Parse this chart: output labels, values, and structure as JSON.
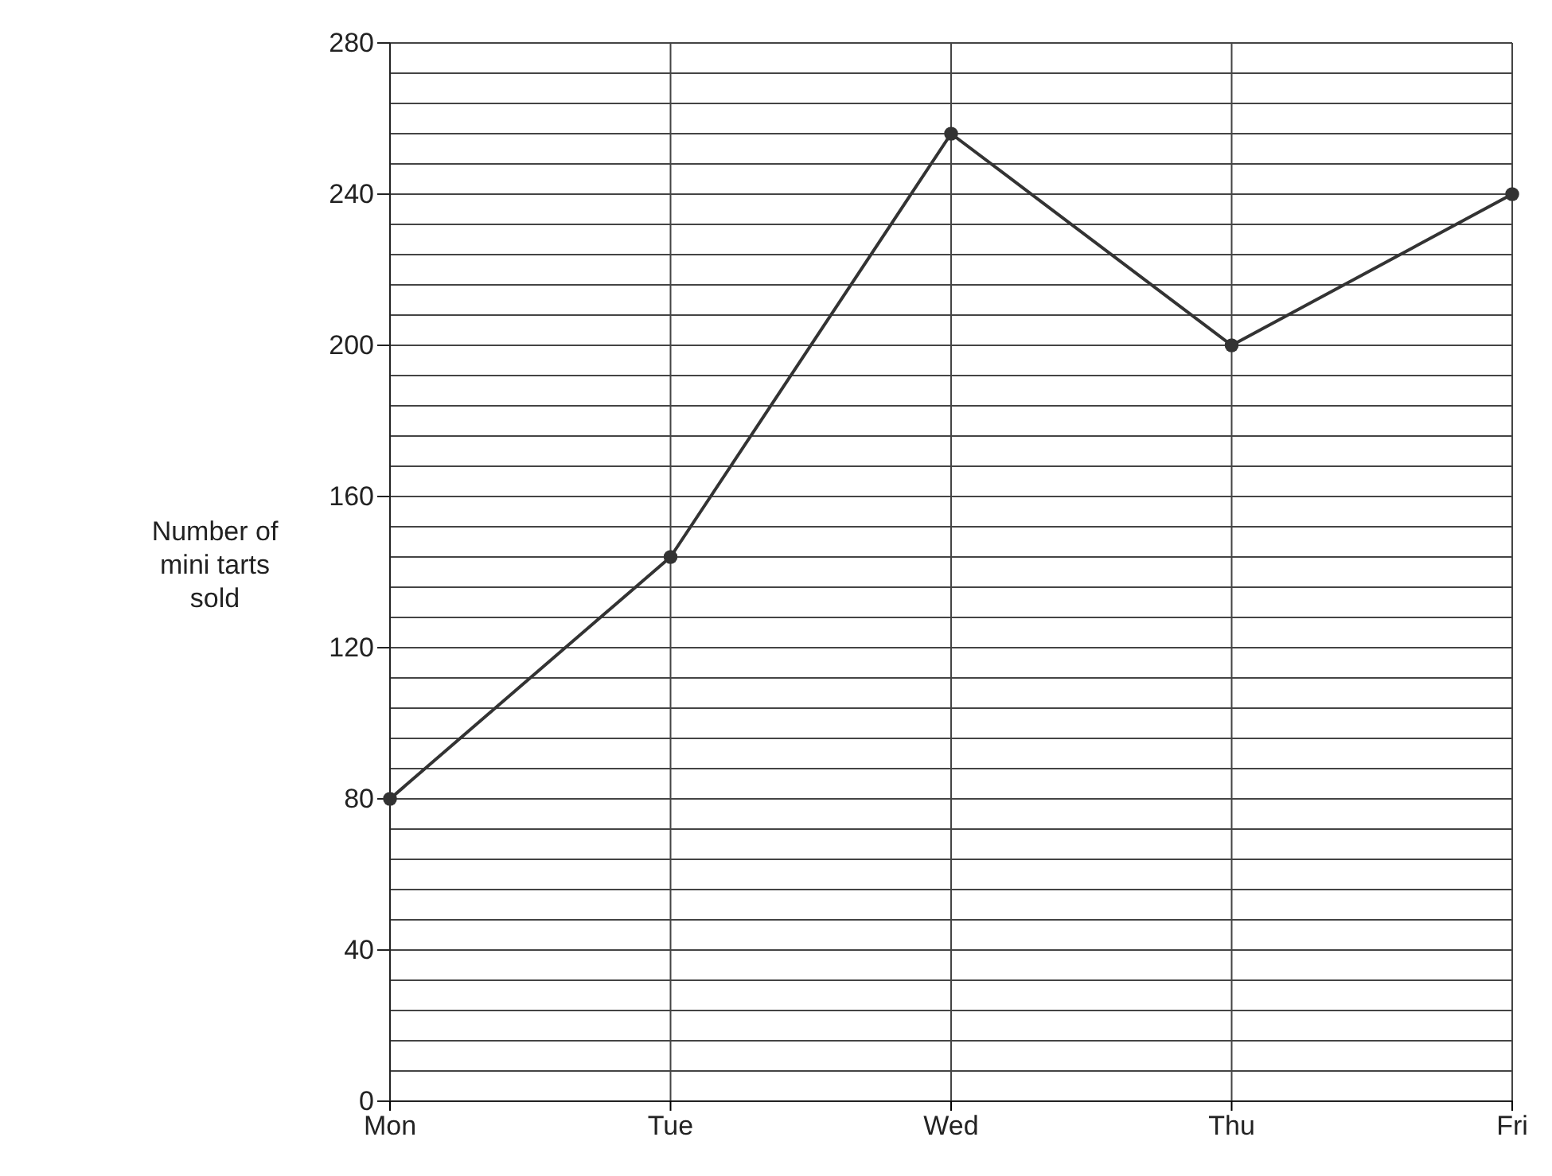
{
  "chart_data": {
    "type": "line",
    "ylabel": "Number of mini tarts sold",
    "categories": [
      "Mon",
      "Tue",
      "Wed",
      "Thu",
      "Fri"
    ],
    "series": [
      {
        "color": "#333333",
        "values": [
          80,
          144,
          256,
          200,
          240
        ]
      }
    ],
    "ylim": [
      0,
      280
    ],
    "yticks": [
      0,
      {
        "value": 8,
        "label": null
      },
      {
        "value": 16,
        "label": null
      },
      {
        "value": 24,
        "label": null
      },
      {
        "value": 32,
        "label": null
      },
      40,
      {
        "value": 48,
        "label": null
      },
      {
        "value": 56,
        "label": null
      },
      {
        "value": 64,
        "label": null
      },
      {
        "value": 72,
        "label": null
      },
      80,
      {
        "value": 88,
        "label": null
      },
      {
        "value": 96,
        "label": null
      },
      {
        "value": 104,
        "label": null
      },
      {
        "value": 112,
        "label": null
      },
      120,
      {
        "value": 128,
        "label": null
      },
      {
        "value": 136,
        "label": null
      },
      {
        "value": 144,
        "label": null
      },
      {
        "value": 152,
        "label": null
      },
      160,
      {
        "value": 168,
        "label": null
      },
      {
        "value": 176,
        "label": null
      },
      {
        "value": 184,
        "label": null
      },
      {
        "value": 192,
        "label": null
      },
      200,
      {
        "value": 208,
        "label": null
      },
      {
        "value": 216,
        "label": null
      },
      {
        "value": 224,
        "label": null
      },
      {
        "value": 232,
        "label": null
      },
      240,
      {
        "value": 248,
        "label": null
      },
      {
        "value": 256,
        "label": null
      },
      {
        "value": 264,
        "label": null
      },
      {
        "value": 272,
        "label": null
      },
      280
    ],
    "grid": true,
    "marker": "circle",
    "line_style": "solid"
  }
}
